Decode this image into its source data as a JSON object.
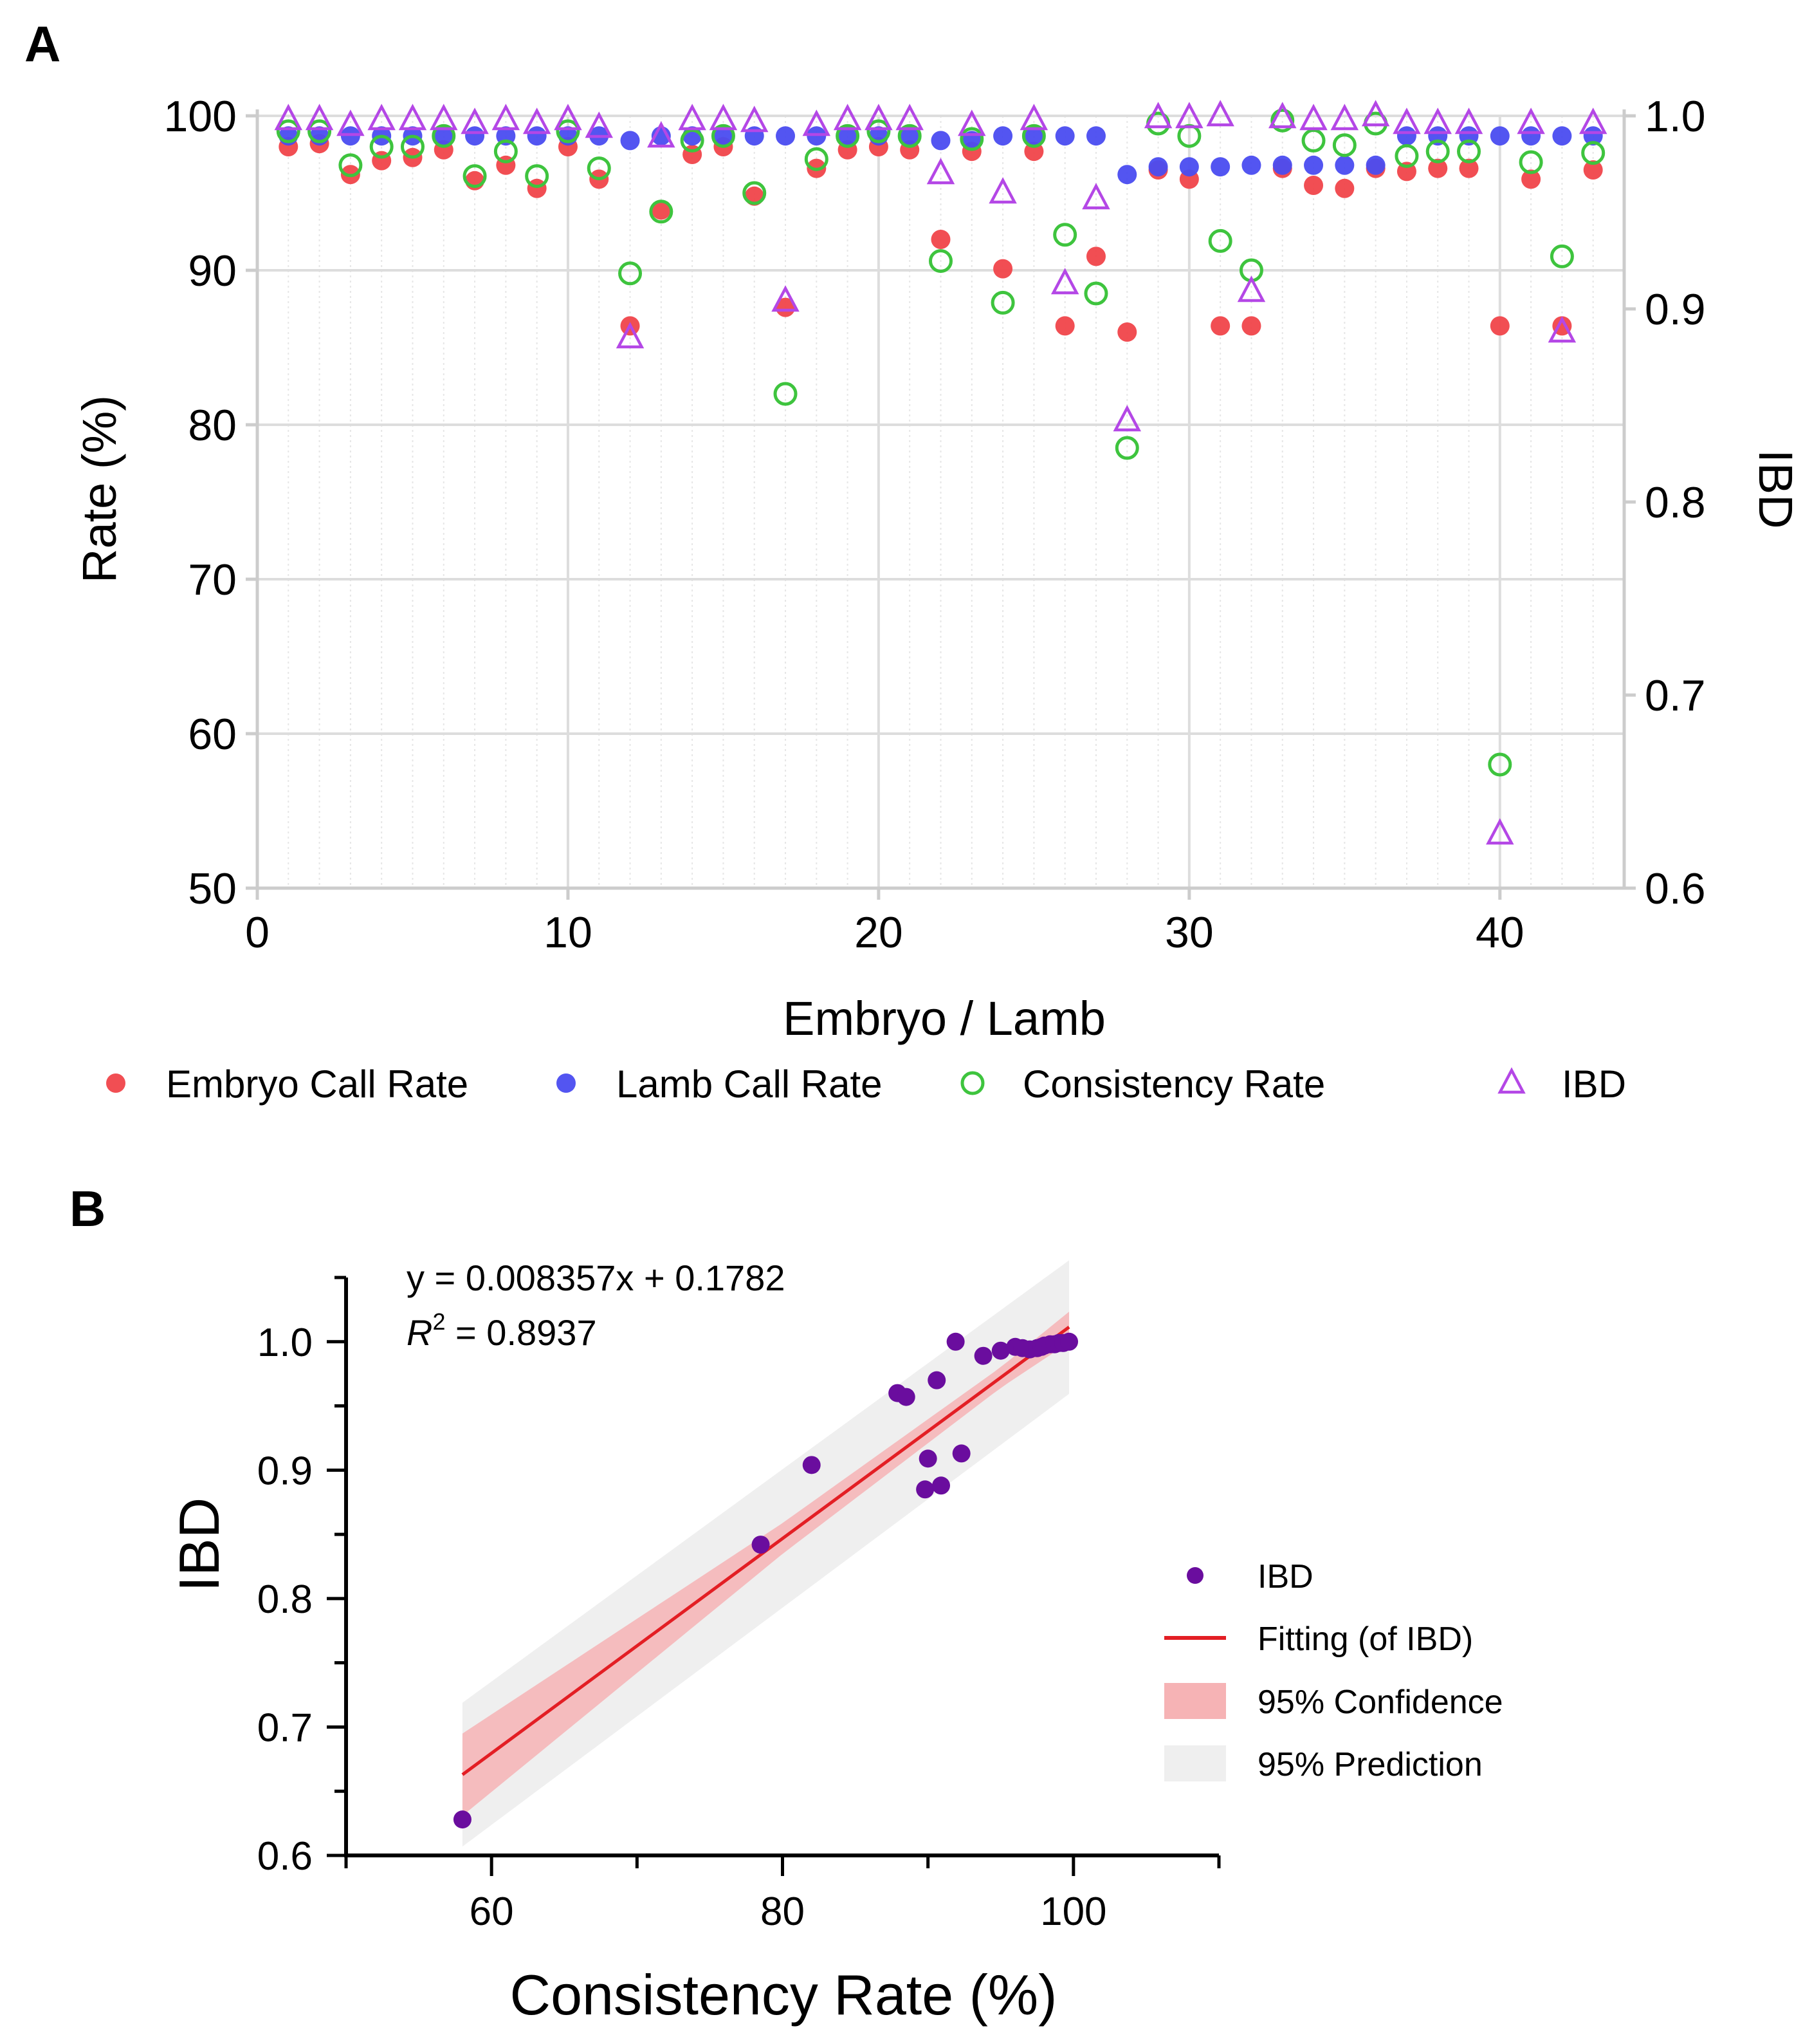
{
  "colors": {
    "embryo": "#f0454a",
    "lamb": "#4a4cf0",
    "consistency": "#3ec43e",
    "ibd_a": "#b447e6",
    "ibd_b": "#6a0d9e",
    "fit": "#e31e24",
    "confidence": "#f6b3b5",
    "prediction": "#efefef",
    "grid": "#dddddd",
    "axis": "#000000"
  },
  "chart_data": [
    {
      "panel": "A",
      "type": "scatter",
      "xlabel": "Embryo / Lamb",
      "ylabel": "Rate (%)",
      "y2label": "IBD",
      "xlim": [
        0,
        44
      ],
      "ylim": [
        50,
        100
      ],
      "y2lim": [
        0.6,
        1.0
      ],
      "xticks": [
        0,
        10,
        20,
        30,
        40
      ],
      "yticks": [
        50,
        60,
        70,
        80,
        90,
        100
      ],
      "y2ticks": [
        "0.6",
        "0.7",
        "0.8",
        "0.9",
        "1.0"
      ],
      "grid": true,
      "legend_position": "bottom",
      "x": [
        1,
        2,
        3,
        4,
        5,
        6,
        7,
        8,
        9,
        10,
        11,
        12,
        13,
        14,
        15,
        16,
        17,
        18,
        19,
        20,
        21,
        22,
        23,
        24,
        25,
        26,
        27,
        28,
        29,
        30,
        31,
        32,
        33,
        34,
        35,
        36,
        37,
        38,
        39,
        40,
        41,
        42,
        43
      ],
      "series": [
        {
          "name": "Embryo Call Rate",
          "axis": "left",
          "marker": "filled-circle",
          "color_key": "embryo",
          "values": [
            98.0,
            98.2,
            96.2,
            97.1,
            97.3,
            97.8,
            95.8,
            96.8,
            95.3,
            98.0,
            95.9,
            86.4,
            93.9,
            97.5,
            98.0,
            94.8,
            87.6,
            96.6,
            97.8,
            98.0,
            97.8,
            92.0,
            97.7,
            90.1,
            97.7,
            86.4,
            90.9,
            86.0,
            96.5,
            95.9,
            86.4,
            86.4,
            96.6,
            95.5,
            95.3,
            96.6,
            96.4,
            96.6,
            96.6,
            86.4,
            95.9,
            86.4,
            96.5
          ]
        },
        {
          "name": "Lamb Call Rate",
          "axis": "left",
          "marker": "filled-circle",
          "color_key": "lamb",
          "values": [
            98.7,
            98.7,
            98.7,
            98.7,
            98.7,
            98.7,
            98.7,
            98.7,
            98.7,
            98.7,
            98.7,
            98.4,
            98.7,
            98.7,
            98.7,
            98.7,
            98.7,
            98.7,
            98.7,
            98.7,
            98.7,
            98.4,
            98.4,
            98.7,
            98.7,
            98.7,
            98.7,
            96.2,
            96.7,
            96.7,
            96.7,
            96.8,
            96.8,
            96.8,
            96.8,
            96.8,
            98.7,
            98.7,
            98.7,
            98.7,
            98.7,
            98.7,
            98.7
          ]
        },
        {
          "name": "Consistency Rate",
          "axis": "left",
          "marker": "open-circle",
          "color_key": "consistency",
          "values": [
            99.0,
            99.0,
            96.8,
            98.0,
            98.0,
            98.7,
            96.1,
            97.7,
            96.1,
            99.0,
            96.6,
            89.8,
            93.8,
            98.4,
            98.7,
            95.0,
            82.0,
            97.2,
            98.7,
            99.0,
            98.7,
            90.6,
            98.5,
            87.9,
            98.7,
            92.3,
            88.5,
            78.5,
            99.5,
            98.7,
            91.9,
            90.0,
            99.7,
            98.4,
            98.1,
            99.5,
            97.4,
            97.7,
            97.7,
            58.0,
            97.0,
            90.9,
            97.6
          ]
        },
        {
          "name": "IBD",
          "axis": "right",
          "marker": "open-triangle",
          "color_key": "ibd_a",
          "values": [
            0.998,
            0.998,
            0.995,
            0.998,
            0.998,
            0.998,
            0.996,
            0.998,
            0.996,
            0.998,
            0.994,
            0.885,
            0.989,
            0.998,
            0.998,
            0.997,
            0.904,
            0.995,
            0.998,
            0.998,
            0.998,
            0.97,
            0.995,
            0.96,
            0.998,
            0.913,
            0.957,
            0.842,
            0.999,
            0.999,
            1.0,
            0.909,
            0.999,
            0.998,
            0.998,
            1.0,
            0.996,
            0.996,
            0.996,
            0.628,
            0.996,
            0.888,
            0.996
          ]
        }
      ]
    },
    {
      "panel": "B",
      "type": "scatter",
      "xlabel": "Consistency Rate (%)",
      "ylabel": "IBD",
      "xlim": [
        50,
        110
      ],
      "ylim": [
        0.6,
        1.05
      ],
      "xticks": [
        60,
        80,
        100
      ],
      "yticks": [
        "0.6",
        "0.7",
        "0.8",
        "0.9",
        "1.0"
      ],
      "equation": "y = 0.008357x + 0.1782",
      "r2_label": "R",
      "r2_exp": "2",
      "r2_value": " = 0.8937",
      "fit": {
        "slope": 0.008357,
        "intercept": 0.1782,
        "x_range": [
          58,
          99.7
        ]
      },
      "confidence_band": {
        "x": [
          58,
          80,
          95,
          99.7
        ],
        "half_width": [
          0.032,
          0.012,
          0.008,
          0.012
        ]
      },
      "prediction_band": {
        "x": [
          58,
          99.7
        ],
        "half_width": [
          0.056,
          0.052
        ]
      },
      "points": {
        "x": [
          58.0,
          78.5,
          82.0,
          87.9,
          88.5,
          89.8,
          90.0,
          90.6,
          90.9,
          91.9,
          92.3,
          93.8,
          95.0,
          96.0,
          96.5,
          97.0,
          97.5,
          97.8,
          98.0,
          98.4,
          98.7,
          99.0,
          99.3,
          99.7
        ],
        "y": [
          0.628,
          0.842,
          0.904,
          0.96,
          0.957,
          0.885,
          0.909,
          0.97,
          0.888,
          1.0,
          0.913,
          0.989,
          0.993,
          0.996,
          0.995,
          0.994,
          0.995,
          0.996,
          0.997,
          0.998,
          0.998,
          0.999,
          0.999,
          1.0
        ]
      },
      "legend": [
        {
          "label": "IBD",
          "kind": "dot"
        },
        {
          "label": "Fitting (of IBD)",
          "kind": "line"
        },
        {
          "label": "95% Confidence",
          "kind": "confidence"
        },
        {
          "label": "95% Prediction",
          "kind": "prediction"
        }
      ]
    }
  ],
  "panel_labels": {
    "a": "A",
    "b": "B"
  }
}
